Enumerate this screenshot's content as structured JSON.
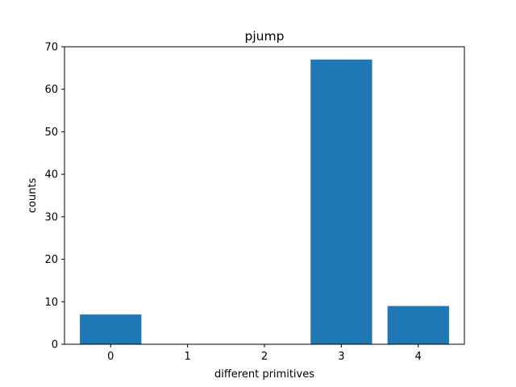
{
  "chart_data": {
    "type": "bar",
    "title": "pjump",
    "xlabel": "different primitives",
    "ylabel": "counts",
    "categories": [
      "0",
      "1",
      "2",
      "3",
      "4"
    ],
    "values": [
      7,
      0,
      0,
      67,
      9
    ],
    "ylim": [
      0,
      70
    ],
    "yticks": [
      "0",
      "10",
      "20",
      "30",
      "40",
      "50",
      "60",
      "70"
    ],
    "bar_color": "#1f77b4",
    "grid": false,
    "legend": false
  }
}
